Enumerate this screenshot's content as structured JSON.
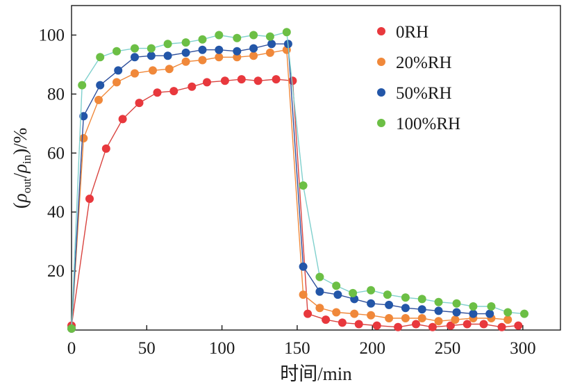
{
  "chart_data": {
    "type": "line",
    "title": "",
    "xlabel": "时间/min",
    "ylabel_parts": {
      "open": "(",
      "rho1": "ρ",
      "sub1": "out",
      "slash": "/",
      "rho2": "ρ",
      "sub2": "in",
      "close": ")/%"
    },
    "xlim": [
      0,
      325
    ],
    "ylim": [
      0,
      110
    ],
    "xticks": [
      0,
      50,
      100,
      150,
      200,
      250,
      300
    ],
    "yticks": [
      20,
      40,
      60,
      80,
      100
    ],
    "legend_position": "top-right",
    "series": [
      {
        "name": "0RH",
        "marker_color": "#e8383d",
        "line_color": "#d9433f",
        "x": [
          0,
          12,
          23,
          34,
          45,
          57,
          68,
          80,
          90,
          102,
          113,
          124,
          136,
          147,
          157,
          169,
          180,
          191,
          203,
          217,
          229,
          240,
          252,
          263,
          274,
          286,
          297
        ],
        "y": [
          1.5,
          44.5,
          61.5,
          71.5,
          77,
          80.5,
          81,
          82.5,
          84,
          84.5,
          85,
          84.5,
          85,
          84.5,
          5.5,
          3.5,
          2.5,
          2,
          1.5,
          1,
          2,
          1,
          1.5,
          2,
          2,
          1,
          1.5
        ]
      },
      {
        "name": "20%RH",
        "marker_color": "#f0883a",
        "line_color": "#f0883a",
        "x": [
          0,
          8,
          18,
          30,
          42,
          54,
          65,
          76,
          87,
          98,
          110,
          121,
          132,
          143,
          154,
          165,
          176,
          188,
          199,
          211,
          222,
          233,
          244,
          255,
          267,
          279,
          290
        ],
        "y": [
          0.5,
          65,
          78,
          84,
          87,
          88,
          88.5,
          91,
          91.5,
          92.5,
          92.5,
          93,
          94,
          95,
          12,
          7.5,
          6,
          5.5,
          5,
          4,
          4,
          4,
          3,
          3.5,
          4,
          4,
          3.5
        ]
      },
      {
        "name": "50%RH",
        "marker_color": "#2356a8",
        "line_color": "#2e4f9c",
        "x": [
          0,
          8,
          19,
          31,
          42,
          53,
          64,
          76,
          87,
          98,
          110,
          121,
          133,
          144,
          154,
          165,
          177,
          188,
          199,
          211,
          222,
          233,
          244,
          256,
          267,
          278
        ],
        "y": [
          0.5,
          72.5,
          83,
          88,
          92.5,
          93,
          93,
          94,
          95,
          95,
          94.5,
          95.5,
          97,
          97,
          21.5,
          13,
          12,
          10.5,
          9,
          8.5,
          7.5,
          7,
          6.5,
          6,
          5.5,
          5.5
        ]
      },
      {
        "name": "100%RH",
        "marker_color": "#6cbf45",
        "line_color": "#7fd0cd",
        "x": [
          0,
          7,
          19,
          30,
          42,
          53,
          64,
          76,
          87,
          98,
          110,
          121,
          132,
          143,
          154,
          165,
          176,
          187,
          199,
          210,
          222,
          233,
          244,
          256,
          267,
          279,
          290,
          301
        ],
        "y": [
          0.5,
          83,
          92.5,
          94.5,
          95.5,
          95.5,
          97,
          97.5,
          98.5,
          100,
          99,
          100,
          99.5,
          101,
          49,
          18,
          15,
          12.5,
          13.5,
          12,
          11,
          10.5,
          9.5,
          9,
          8,
          8,
          6,
          5.5
        ]
      }
    ]
  }
}
